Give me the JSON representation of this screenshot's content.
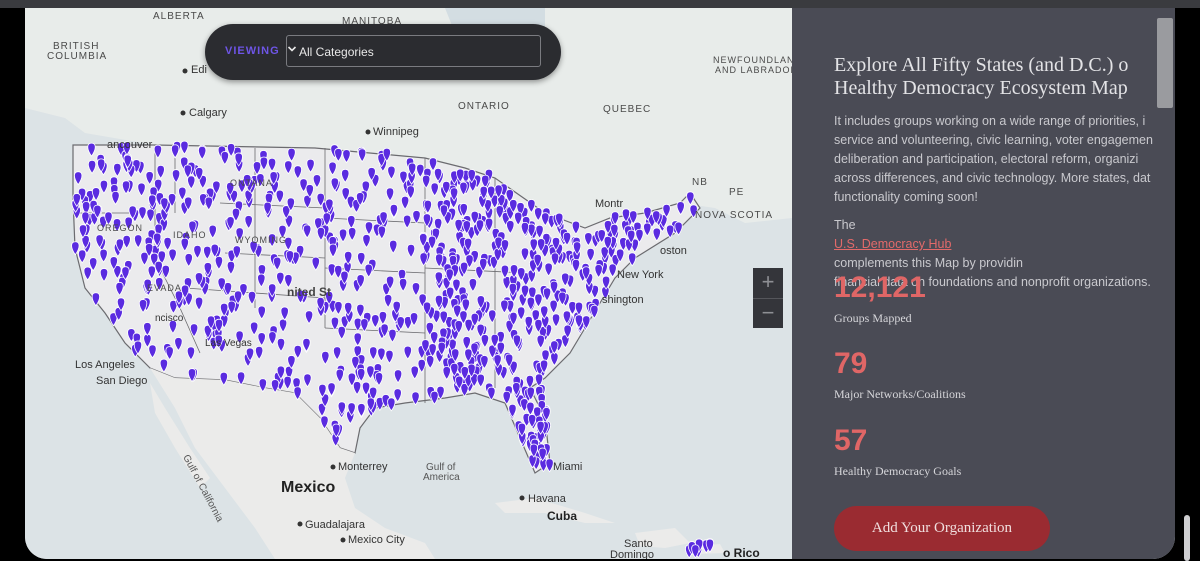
{
  "viewing": {
    "label": "VIEWING",
    "selected": "All Categories"
  },
  "map_labels": {
    "alberta": "ALBERTA",
    "manitoba": "MANITOBA",
    "british_columbia_1": "BRITISH",
    "british_columbia_2": "COLUMBIA",
    "edmonton": "Edi",
    "calgary": "Calgary",
    "winnipeg": "Winnipeg",
    "ontario": "ONTARIO",
    "quebec": "QUEBEC",
    "newfoundland_1": "NEWFOUNDLAND",
    "newfoundland_2": "AND LABRADOR",
    "nb": "NB",
    "pe": "PE",
    "nova_scotia": "NOVA SCOTIA",
    "vancouver": "ancouver",
    "montreal": "Montr",
    "boston": "oston",
    "new_york": "New York",
    "washington": "shington",
    "los_angeles": "Los Angeles",
    "san_diego": "San Diego",
    "miami": "Miami",
    "havana": "Havana",
    "cuba": "Cuba",
    "monterrey": "Monterrey",
    "gulf_of_mexico_1": "Gulf of",
    "gulf_of_mexico_2": "America",
    "mexico": "Mexico",
    "guadalajara": "Guadalajara",
    "mexico_city": "Mexico City",
    "santo_domingo_1": "Santo",
    "santo_domingo_2": "Domingo",
    "puerto_rico": "o Rico",
    "gulf_of_california": "Gulf of California",
    "oregon": "OREGON",
    "idaho": "IDAHO",
    "montana": "ONTANA",
    "wyoming": "WYOMING",
    "nevada": "EVADA",
    "las_vegas": "Las Vegas",
    "united_states": "nited St",
    "san_francisco": "ncisco"
  },
  "zoom": {
    "in": "+",
    "out": "−"
  },
  "panel": {
    "title_line1": "Explore All Fifty States (and D.C.) o",
    "title_line2": "Healthy Democracy Ecosystem Map",
    "intro_line1": "It includes groups working on a wide range of priorities, i",
    "intro_line2": "service and volunteering, civic learning, voter engagemen",
    "intro_line3": "deliberation and participation, electoral reform, organizi",
    "intro_line4": "across differences, and civic technology. More states, dat",
    "intro_line5": "functionality coming soon!",
    "hub_prefix": "The ",
    "hub_link": "U.S. Democracy Hub",
    "hub_suffix": " complements this Map by providin",
    "hub_line2": "financial data on foundations and nonprofit organizations."
  },
  "stats": [
    {
      "value": "12,121",
      "label": "Groups Mapped"
    },
    {
      "value": "79",
      "label": "Major Networks/Coalitions"
    },
    {
      "value": "57",
      "label": "Healthy Democracy Goals"
    }
  ],
  "cta": {
    "label": "Add Your Organization"
  },
  "colors": {
    "marker": "#5a2be0",
    "accent": "#e06666",
    "cta_bg": "#9a2b31",
    "panel_bg": "#4a4b55"
  },
  "icons": {
    "marker": "map-pin-icon",
    "dropdown": "chevron-down-icon",
    "city": "city-dot-icon"
  }
}
